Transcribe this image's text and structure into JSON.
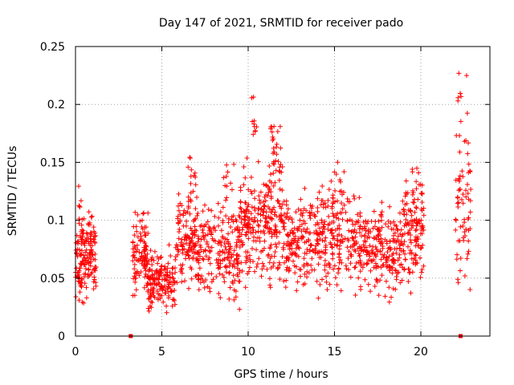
{
  "chart_data": {
    "type": "scatter",
    "title": "Day 147 of 2021, SRMTID for receiver pado",
    "xlabel": "GPS time / hours",
    "ylabel": "SRMTID / TECUs",
    "xlim": [
      0,
      24
    ],
    "ylim": [
      0,
      0.25
    ],
    "x_ticks": [
      0,
      5,
      10,
      15,
      20
    ],
    "y_ticks": [
      0,
      0.05,
      0.1,
      0.15,
      0.2,
      0.25
    ],
    "x_tick_labels": [
      "0",
      "5",
      "10",
      "15",
      "20"
    ],
    "y_tick_labels": [
      "0",
      "0.05",
      "0.1",
      "0.15",
      "0.2",
      "0.25"
    ],
    "grid": true,
    "marker": "plus",
    "color": "#ff0000",
    "zero_markers": {
      "marker": "square",
      "x": [
        3.2,
        22.3
      ],
      "y": [
        0,
        0
      ]
    },
    "series": [
      {
        "name": "SRMTID",
        "clusters": [
          {
            "x_range": [
              0.0,
              1.2
            ],
            "mean": 0.068,
            "spread": 0.016,
            "count": 160
          },
          {
            "x_range": [
              0.15,
              0.35
            ],
            "mean": 0.115,
            "spread": 0.012,
            "count": 6
          },
          {
            "x_range": [
              3.3,
              4.2
            ],
            "mean": 0.068,
            "spread": 0.015,
            "count": 110
          },
          {
            "x_range": [
              4.2,
              5.8
            ],
            "mean": 0.048,
            "spread": 0.012,
            "count": 160
          },
          {
            "x_range": [
              5.8,
              7.0
            ],
            "mean": 0.082,
            "spread": 0.02,
            "count": 120
          },
          {
            "x_range": [
              6.5,
              7.0
            ],
            "mean": 0.135,
            "spread": 0.01,
            "count": 14
          },
          {
            "x_range": [
              7.0,
              9.5
            ],
            "mean": 0.074,
            "spread": 0.02,
            "count": 220
          },
          {
            "x_range": [
              8.5,
              9.2
            ],
            "mean": 0.135,
            "spread": 0.015,
            "count": 10
          },
          {
            "x_range": [
              9.5,
              11.0
            ],
            "mean": 0.095,
            "spread": 0.02,
            "count": 150
          },
          {
            "x_range": [
              10.2,
              10.5
            ],
            "mean": 0.185,
            "spread": 0.015,
            "count": 10
          },
          {
            "x_range": [
              11.0,
              12.0
            ],
            "mean": 0.105,
            "spread": 0.025,
            "count": 110
          },
          {
            "x_range": [
              11.2,
              12.0
            ],
            "mean": 0.17,
            "spread": 0.015,
            "count": 22
          },
          {
            "x_range": [
              12.0,
              13.5
            ],
            "mean": 0.078,
            "spread": 0.02,
            "count": 130
          },
          {
            "x_range": [
              13.5,
              16.5
            ],
            "mean": 0.085,
            "spread": 0.02,
            "count": 260
          },
          {
            "x_range": [
              14.5,
              15.5
            ],
            "mean": 0.13,
            "spread": 0.012,
            "count": 10
          },
          {
            "x_range": [
              16.5,
              19.0
            ],
            "mean": 0.075,
            "spread": 0.018,
            "count": 220
          },
          {
            "x_range": [
              19.0,
              20.2
            ],
            "mean": 0.09,
            "spread": 0.02,
            "count": 120
          },
          {
            "x_range": [
              19.5,
              20.2
            ],
            "mean": 0.13,
            "spread": 0.015,
            "count": 14
          },
          {
            "x_range": [
              22.0,
              22.9
            ],
            "mean": 0.11,
            "spread": 0.04,
            "count": 70
          },
          {
            "x_range": [
              22.1,
              22.4
            ],
            "mean": 0.215,
            "spread": 0.015,
            "count": 6
          }
        ]
      }
    ]
  }
}
